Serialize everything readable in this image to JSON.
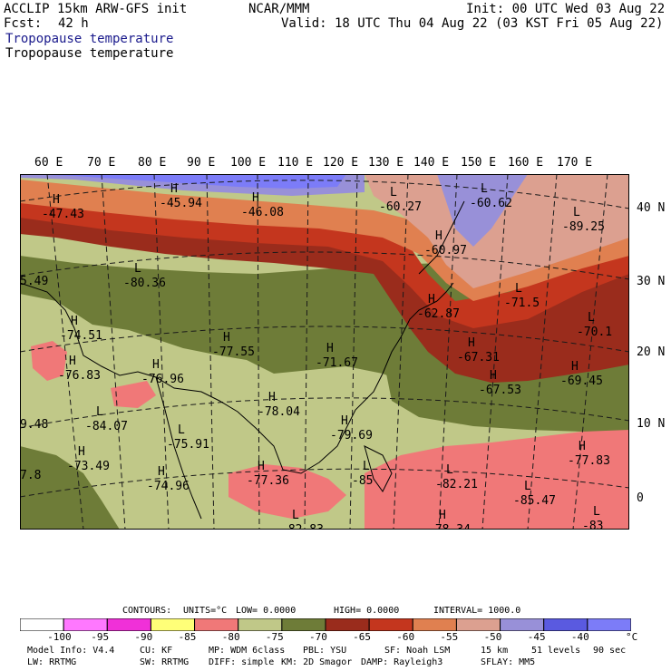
{
  "header": {
    "model": "ACCLIP 15km ARW-GFS init",
    "forecast_label": "Fcst:",
    "forecast_hours": "42 h",
    "org": "NCAR/MMM",
    "init": "Init: 00 UTC Wed 03 Aug 22",
    "valid": "Valid: 18 UTC Thu 04 Aug 22 (03 KST Fri 05 Aug 22)",
    "field_title_1": "Tropopause temperature",
    "field_title_2": "Tropopause temperature"
  },
  "map": {
    "lon_labels": [
      "60 E",
      "70 E",
      "80 E",
      "90 E",
      "100 E",
      "110 E",
      "120 E",
      "130 E",
      "140 E",
      "150 E",
      "160 E",
      "170 E"
    ],
    "lat_labels": [
      "40 N",
      "30 N",
      "20 N",
      "10 N",
      "0"
    ],
    "highs": [
      {
        "label": "H",
        "value": "-47.43"
      },
      {
        "label": "H",
        "value": "-45.94"
      },
      {
        "label": "H",
        "value": "-46.08"
      },
      {
        "label": "H",
        "value": "-60.97"
      },
      {
        "label": "H",
        "value": "-62.87"
      },
      {
        "label": "H",
        "value": "-74.51"
      },
      {
        "label": "H",
        "value": "-76.83"
      },
      {
        "label": "H",
        "value": "-77.55"
      },
      {
        "label": "H",
        "value": "-71.67"
      },
      {
        "label": "H",
        "value": "-67.31"
      },
      {
        "label": "H",
        "value": "-67.53"
      },
      {
        "label": "H",
        "value": "-69.45"
      },
      {
        "label": "H",
        "value": "-78.04"
      },
      {
        "label": "H",
        "value": "-79.69"
      },
      {
        "label": "H",
        "value": "-73.49"
      },
      {
        "label": "H",
        "value": "-74.96"
      },
      {
        "label": "H",
        "value": "-77.36"
      },
      {
        "label": "H",
        "value": "-77.83"
      },
      {
        "label": "H",
        "value": "-78.34"
      },
      {
        "label": "H",
        "value": "-76.96"
      }
    ],
    "lows": [
      {
        "label": "L",
        "value": "-60.27"
      },
      {
        "label": "L",
        "value": "-60.62"
      },
      {
        "label": "L",
        "value": "-80.36"
      },
      {
        "label": "L",
        "value": "-71.5"
      },
      {
        "label": "L",
        "value": "-70.1"
      },
      {
        "label": "L",
        "value": "-89.25"
      },
      {
        "label": "L",
        "value": "-84.07"
      },
      {
        "label": "L",
        "value": "-75.91"
      },
      {
        "label": "L",
        "value": "-82.21"
      },
      {
        "label": "L",
        "value": "-85.47"
      },
      {
        "label": "L",
        "value": "-82.83"
      },
      {
        "label": "L",
        "value": "-83"
      },
      {
        "label": "L",
        "value": "-85"
      }
    ],
    "edge_labels": [
      "5.49",
      "9.48",
      "7.8"
    ]
  },
  "contours": {
    "label": "CONTOURS:",
    "units": "UNITS=°C",
    "low": "LOW= 0.0000",
    "high": "HIGH= 0.0000",
    "interval": "INTERVAL= 1000.0"
  },
  "colorbar": {
    "colors": [
      "#ffffff",
      "#ff78ff",
      "#f030d8",
      "#ffff78",
      "#f07878",
      "#c0c888",
      "#6e7c38",
      "#9a2c1c",
      "#c4361e",
      "#e08050",
      "#dca090",
      "#9890d8",
      "#5a5ae0",
      "#7c7cf8"
    ],
    "ticks": [
      "-100",
      "-95",
      "-90",
      "-85",
      "-80",
      "-75",
      "-70",
      "-65",
      "-60",
      "-55",
      "-50",
      "-45",
      "-40"
    ],
    "unit": "°C"
  },
  "footer": {
    "line1": [
      "Model Info: V4.4",
      "CU: KF",
      "MP: WDM 6class",
      "PBL: YSU",
      "SF: Noah LSM",
      "15 km",
      "51 levels",
      "90 sec"
    ],
    "line2": [
      "LW: RRTMG",
      "SW: RRTMG",
      "DIFF: simple",
      "KM: 2D Smagor",
      "DAMP: Rayleigh3",
      "SFLAY: MM5"
    ]
  }
}
